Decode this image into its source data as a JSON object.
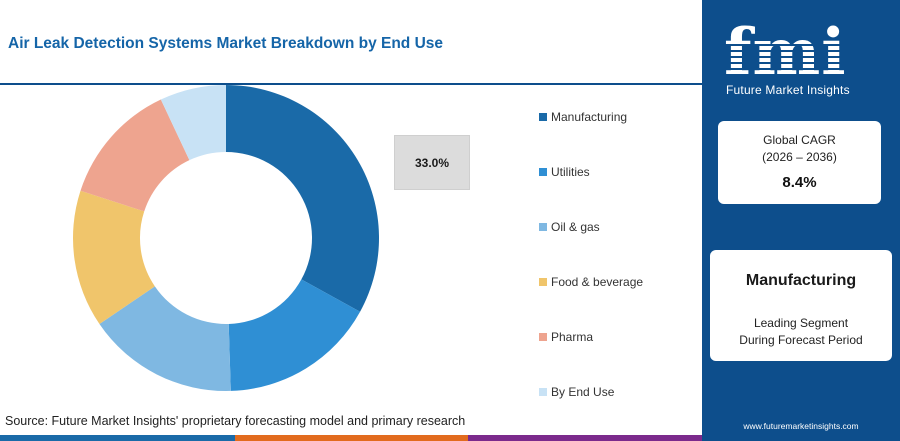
{
  "title": "Air Leak Detection Systems Market Breakdown by End Use",
  "source": "Source: Future Market Insights' proprietary forecasting model and primary research",
  "callout_value": "33.0%",
  "chart_data": {
    "type": "pie",
    "variant": "donut",
    "title": "Air Leak Detection Systems Market Breakdown by End Use",
    "categories": [
      "Manufacturing",
      "Utilities",
      "Oil & gas",
      "Food & beverage",
      "Pharma",
      "By End Use"
    ],
    "values": [
      33.0,
      16.5,
      16.0,
      14.5,
      13.0,
      7.0
    ],
    "colors": [
      "#1a6aa8",
      "#2f8fd4",
      "#7fb8e2",
      "#f0c56b",
      "#eea48f",
      "#c8e2f5"
    ],
    "labeled_value": "33.0%",
    "legend_position": "right"
  },
  "brand": {
    "logo_letters": "fmi",
    "name": "Future Market Insights",
    "website": "www.futuremarketinsights.com"
  },
  "cagr": {
    "label": "Global CAGR",
    "period": "(2026 – 2036)",
    "value": "8.4%"
  },
  "leading_segment": {
    "name": "Manufacturing",
    "line1": "Leading Segment",
    "line2": "During Forecast Period"
  },
  "colors": {
    "brand_blue": "#0d4e8c",
    "title_blue": "#1565a8",
    "bottom_bar": [
      "#1a6aa8",
      "#e26b1e",
      "#7b2a8c",
      "#0d4e8c"
    ]
  }
}
